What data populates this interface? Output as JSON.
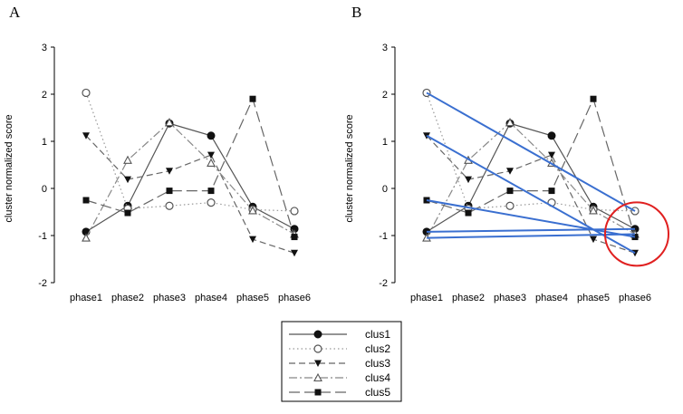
{
  "chart_data": [
    {
      "panel_label": "A",
      "type": "line",
      "xlabel": "",
      "ylabel": "cluster normalized score",
      "categories": [
        "phase1",
        "phase2",
        "phase3",
        "phase4",
        "phase5",
        "phase6"
      ],
      "ylim": [
        -2,
        3
      ],
      "yticks": [
        "3",
        "2",
        "1",
        "0",
        "-1",
        "-2"
      ],
      "grid": false,
      "series": [
        {
          "name": "clus1",
          "marker": "circle-filled",
          "dash": "solid",
          "values": [
            -0.92,
            -0.37,
            1.38,
            1.12,
            -0.39,
            -0.86
          ]
        },
        {
          "name": "clus2",
          "marker": "circle-open",
          "dash": "dotted",
          "values": [
            2.03,
            -0.43,
            -0.37,
            -0.3,
            -0.45,
            -0.48
          ]
        },
        {
          "name": "clus3",
          "marker": "triangle-down-filled",
          "dash": "dashed",
          "values": [
            1.12,
            0.19,
            0.37,
            0.71,
            -1.08,
            -1.37
          ]
        },
        {
          "name": "clus4",
          "marker": "triangle-up-open",
          "dash": "dash-dot",
          "values": [
            -1.05,
            0.6,
            1.4,
            0.54,
            -0.47,
            -0.97
          ]
        },
        {
          "name": "clus5",
          "marker": "square-filled",
          "dash": "long-dash",
          "values": [
            -0.25,
            -0.52,
            -0.05,
            -0.05,
            1.9,
            -1.03
          ]
        }
      ]
    },
    {
      "panel_label": "B",
      "type": "line",
      "xlabel": "",
      "ylabel": "cluster normalized score",
      "categories": [
        "phase1",
        "phase2",
        "phase3",
        "phase4",
        "phase5",
        "phase6"
      ],
      "ylim": [
        -2,
        3
      ],
      "yticks": [
        "3",
        "2",
        "1",
        "0",
        "-1",
        "-2"
      ],
      "grid": false,
      "series": [
        {
          "name": "clus1",
          "marker": "circle-filled",
          "dash": "solid",
          "values": [
            -0.92,
            -0.37,
            1.38,
            1.12,
            -0.39,
            -0.86
          ]
        },
        {
          "name": "clus2",
          "marker": "circle-open",
          "dash": "dotted",
          "values": [
            2.03,
            -0.43,
            -0.37,
            -0.3,
            -0.45,
            -0.48
          ]
        },
        {
          "name": "clus3",
          "marker": "triangle-down-filled",
          "dash": "dashed",
          "values": [
            1.12,
            0.19,
            0.37,
            0.71,
            -1.08,
            -1.37
          ]
        },
        {
          "name": "clus4",
          "marker": "triangle-up-open",
          "dash": "dash-dot",
          "values": [
            -1.05,
            0.6,
            1.4,
            0.54,
            -0.47,
            -0.97
          ]
        },
        {
          "name": "clus5",
          "marker": "square-filled",
          "dash": "long-dash",
          "values": [
            -0.25,
            -0.52,
            -0.05,
            -0.05,
            1.9,
            -1.03
          ]
        }
      ],
      "overlay_lines": {
        "color": "#3a6fd0",
        "segments": [
          {
            "from": [
              "phase1",
              2.03
            ],
            "to": [
              "phase6",
              -0.48
            ]
          },
          {
            "from": [
              "phase1",
              1.12
            ],
            "to": [
              "phase6",
              -1.37
            ]
          },
          {
            "from": [
              "phase1",
              -0.25
            ],
            "to": [
              "phase6",
              -1.03
            ]
          },
          {
            "from": [
              "phase1",
              -0.92
            ],
            "to": [
              "phase6",
              -0.86
            ]
          },
          {
            "from": [
              "phase1",
              -1.05
            ],
            "to": [
              "phase6",
              -0.97
            ]
          }
        ]
      },
      "highlight_circle": {
        "color": "#e02020",
        "center": [
          "phase6",
          -0.93
        ]
      }
    }
  ],
  "legend": {
    "placement": "bottom-center",
    "entries": [
      {
        "name": "clus1",
        "marker": "circle-filled",
        "dash": "solid"
      },
      {
        "name": "clus2",
        "marker": "circle-open",
        "dash": "dotted"
      },
      {
        "name": "clus3",
        "marker": "triangle-down-filled",
        "dash": "dashed"
      },
      {
        "name": "clus4",
        "marker": "triangle-up-open",
        "dash": "dash-dot"
      },
      {
        "name": "clus5",
        "marker": "square-filled",
        "dash": "long-dash"
      }
    ]
  }
}
